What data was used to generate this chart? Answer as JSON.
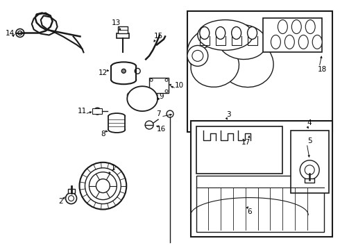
{
  "background_color": "#ffffff",
  "line_color": "#1a1a1a",
  "label_color": "#000000",
  "fig_width": 4.9,
  "fig_height": 3.6,
  "dpi": 100,
  "fontsize_label": 7.5
}
